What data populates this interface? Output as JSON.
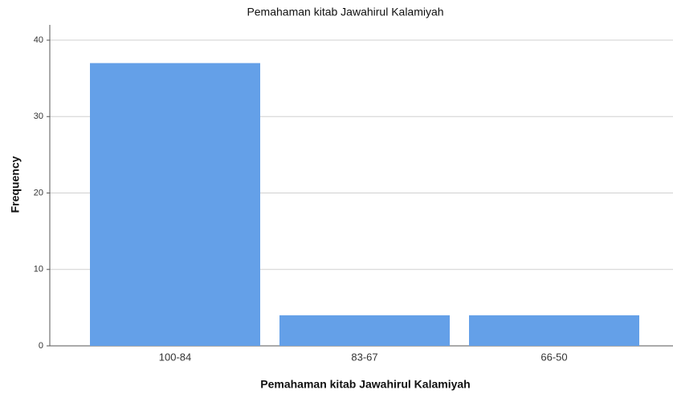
{
  "chart_data": {
    "type": "bar",
    "title": "Pemahaman kitab Jawahirul Kalamiyah",
    "x_label": "Pemahaman kitab Jawahirul Kalamiyah",
    "y_label": "Frequency",
    "categories": [
      "100-84",
      "83-67",
      "66-50"
    ],
    "values": [
      37,
      4,
      4
    ],
    "color": "#64a0e8",
    "ylim": [
      0,
      42
    ],
    "yticks": [
      0,
      10,
      20,
      30,
      40
    ],
    "grid": true
  }
}
